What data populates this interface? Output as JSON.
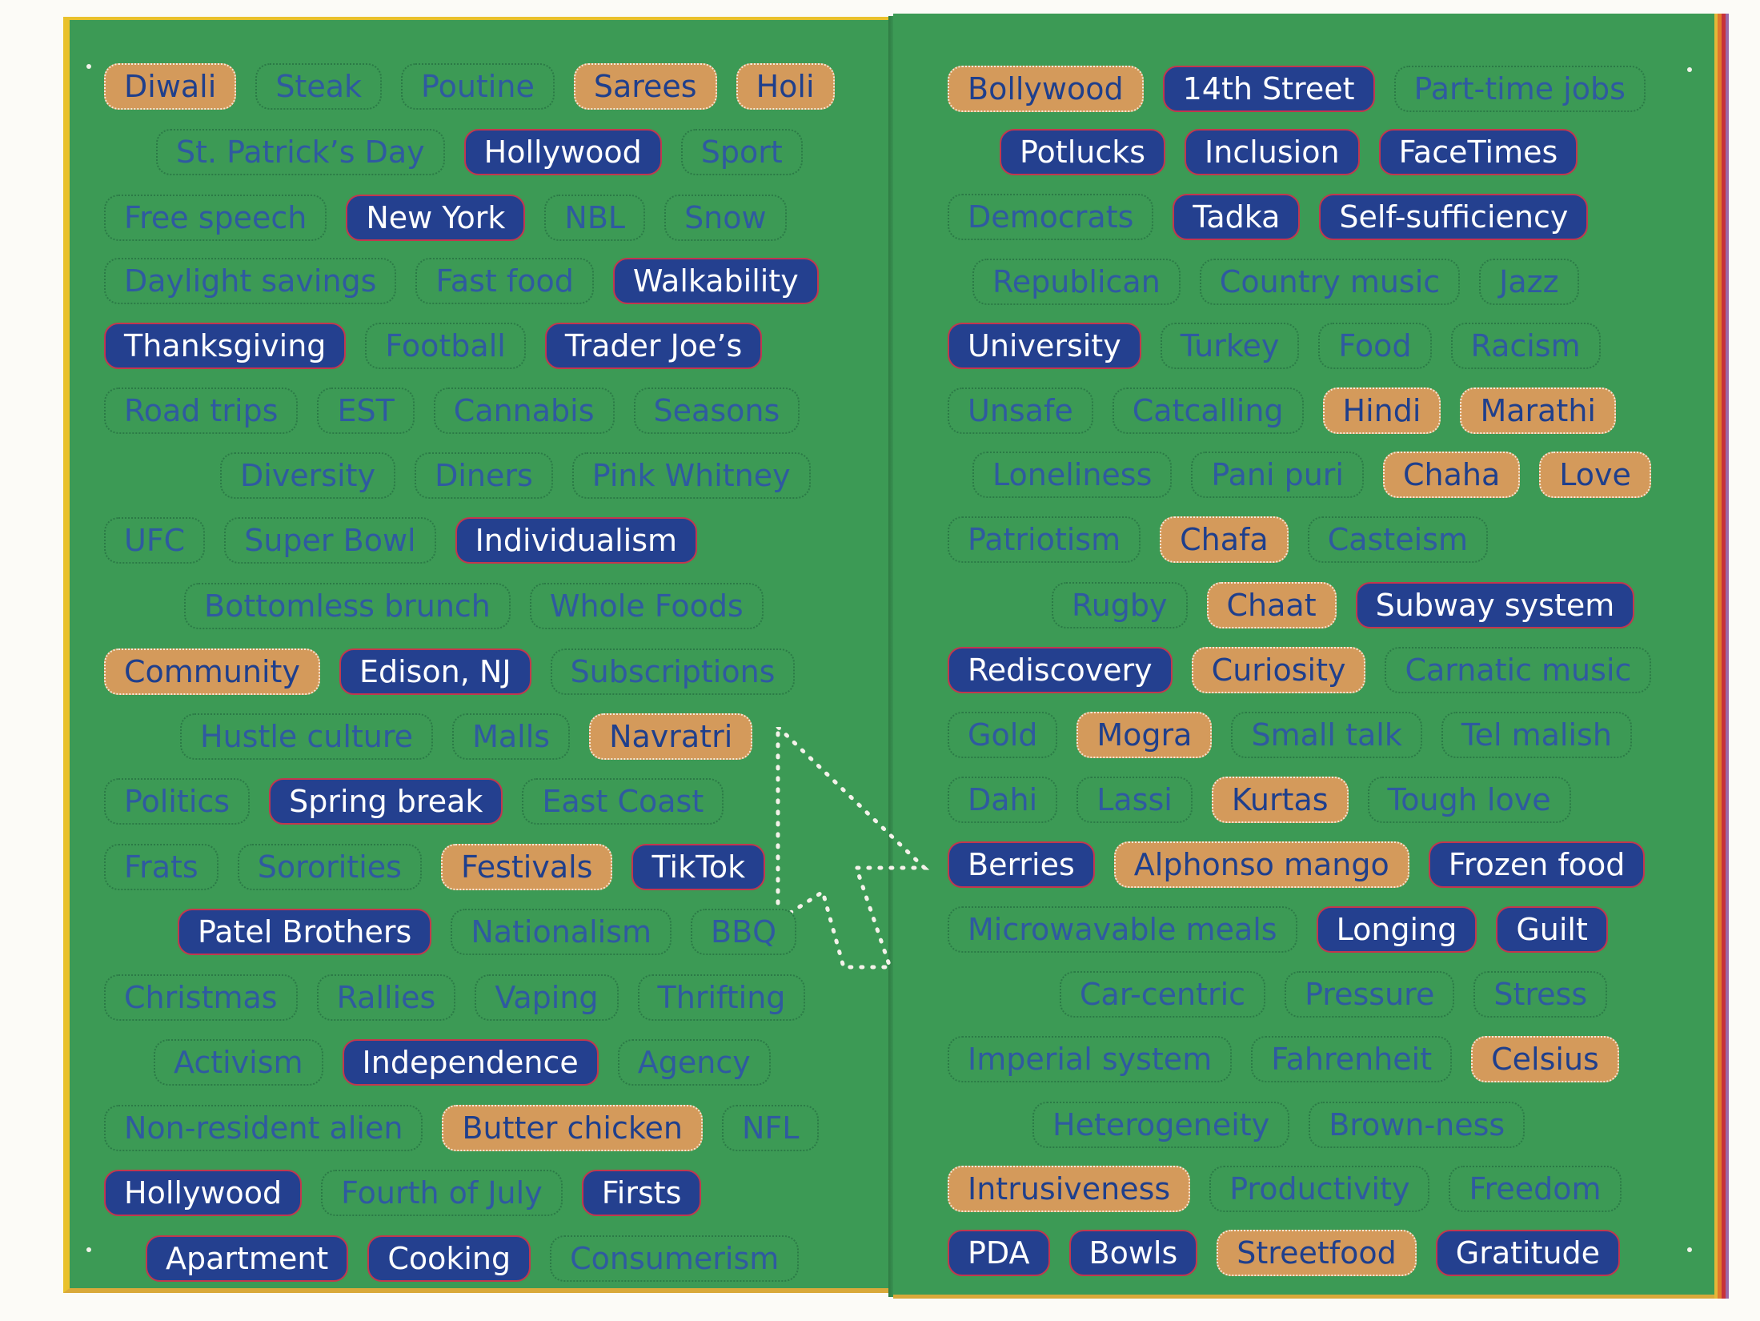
{
  "left_page": {
    "rows": [
      [
        {
          "t": "Diwali",
          "s": "orange"
        },
        {
          "t": "Steak",
          "s": "neutral"
        },
        {
          "t": "Poutine",
          "s": "neutral"
        },
        {
          "t": "Sarees",
          "s": "orange"
        },
        {
          "t": "Holi",
          "s": "orange"
        }
      ],
      [
        {
          "t": "St. Patrick’s Day",
          "s": "neutral"
        },
        {
          "t": "Hollywood",
          "s": "blue"
        },
        {
          "t": "Sport",
          "s": "neutral"
        }
      ],
      [
        {
          "t": "Free speech",
          "s": "neutral"
        },
        {
          "t": "New York",
          "s": "blue"
        },
        {
          "t": "NBL",
          "s": "neutral"
        },
        {
          "t": "Snow",
          "s": "neutral"
        }
      ],
      [
        {
          "t": "Daylight savings",
          "s": "neutral"
        },
        {
          "t": "Fast food",
          "s": "neutral"
        },
        {
          "t": "Walkability",
          "s": "blue"
        }
      ],
      [
        {
          "t": "Thanksgiving",
          "s": "blue"
        },
        {
          "t": "Football",
          "s": "neutral"
        },
        {
          "t": "Trader Joe’s",
          "s": "blue"
        }
      ],
      [
        {
          "t": "Road trips",
          "s": "neutral"
        },
        {
          "t": "EST",
          "s": "neutral"
        },
        {
          "t": "Cannabis",
          "s": "neutral"
        },
        {
          "t": "Seasons",
          "s": "neutral"
        }
      ],
      [
        {
          "t": "Diversity",
          "s": "neutral"
        },
        {
          "t": "Diners",
          "s": "neutral"
        },
        {
          "t": "Pink Whitney",
          "s": "neutral"
        }
      ],
      [
        {
          "t": "UFC",
          "s": "neutral"
        },
        {
          "t": "Super Bowl",
          "s": "neutral"
        },
        {
          "t": "Individualism",
          "s": "blue"
        }
      ],
      [
        {
          "t": "Bottomless brunch",
          "s": "neutral"
        },
        {
          "t": "Whole Foods",
          "s": "neutral"
        }
      ],
      [
        {
          "t": "Community",
          "s": "orange"
        },
        {
          "t": "Edison, NJ",
          "s": "blue"
        },
        {
          "t": "Subscriptions",
          "s": "neutral"
        }
      ],
      [
        {
          "t": "Hustle culture",
          "s": "neutral"
        },
        {
          "t": "Malls",
          "s": "neutral"
        },
        {
          "t": "Navratri",
          "s": "orange"
        }
      ],
      [
        {
          "t": "Politics",
          "s": "neutral"
        },
        {
          "t": "Spring break",
          "s": "blue"
        },
        {
          "t": "East Coast",
          "s": "neutral"
        }
      ],
      [
        {
          "t": "Frats",
          "s": "neutral"
        },
        {
          "t": "Sororities",
          "s": "neutral"
        },
        {
          "t": "Festivals",
          "s": "orange"
        },
        {
          "t": "TikTok",
          "s": "blue"
        }
      ],
      [
        {
          "t": "Patel Brothers",
          "s": "blue"
        },
        {
          "t": "Nationalism",
          "s": "neutral"
        },
        {
          "t": "BBQ",
          "s": "neutral"
        }
      ],
      [
        {
          "t": "Christmas",
          "s": "neutral"
        },
        {
          "t": "Rallies",
          "s": "neutral"
        },
        {
          "t": "Vaping",
          "s": "neutral"
        },
        {
          "t": "Thrifting",
          "s": "neutral"
        }
      ],
      [
        {
          "t": "Activism",
          "s": "neutral"
        },
        {
          "t": "Independence",
          "s": "blue"
        },
        {
          "t": "Agency",
          "s": "neutral"
        }
      ],
      [
        {
          "t": "Non-resident alien",
          "s": "neutral"
        },
        {
          "t": "Butter chicken",
          "s": "orange"
        },
        {
          "t": "NFL",
          "s": "neutral"
        }
      ],
      [
        {
          "t": "Hollywood",
          "s": "blue"
        },
        {
          "t": "Fourth of July",
          "s": "neutral"
        },
        {
          "t": "Firsts",
          "s": "blue"
        }
      ],
      [
        {
          "t": "Apartment",
          "s": "blue"
        },
        {
          "t": "Cooking",
          "s": "blue"
        },
        {
          "t": "Consumerism",
          "s": "neutral"
        }
      ]
    ]
  },
  "right_page": {
    "rows": [
      [
        {
          "t": "Bollywood",
          "s": "orange"
        },
        {
          "t": "14th Street",
          "s": "blue"
        },
        {
          "t": "Part-time jobs",
          "s": "neutral"
        }
      ],
      [
        {
          "t": "Potlucks",
          "s": "blue"
        },
        {
          "t": "Inclusion",
          "s": "blue"
        },
        {
          "t": "FaceTimes",
          "s": "blue"
        }
      ],
      [
        {
          "t": "Democrats",
          "s": "neutral"
        },
        {
          "t": "Tadka",
          "s": "blue"
        },
        {
          "t": "Self-sufficiency",
          "s": "blue"
        }
      ],
      [
        {
          "t": "Republican",
          "s": "neutral"
        },
        {
          "t": "Country music",
          "s": "neutral"
        },
        {
          "t": "Jazz",
          "s": "neutral"
        }
      ],
      [
        {
          "t": "University",
          "s": "blue"
        },
        {
          "t": "Turkey",
          "s": "neutral"
        },
        {
          "t": "Food",
          "s": "neutral"
        },
        {
          "t": "Racism",
          "s": "neutral"
        }
      ],
      [
        {
          "t": "Unsafe",
          "s": "neutral"
        },
        {
          "t": "Catcalling",
          "s": "neutral"
        },
        {
          "t": "Hindi",
          "s": "orange"
        },
        {
          "t": "Marathi",
          "s": "orange"
        }
      ],
      [
        {
          "t": "Loneliness",
          "s": "neutral"
        },
        {
          "t": "Pani puri",
          "s": "neutral"
        },
        {
          "t": "Chaha",
          "s": "orange"
        },
        {
          "t": "Love",
          "s": "orange"
        }
      ],
      [
        {
          "t": "Patriotism",
          "s": "neutral"
        },
        {
          "t": "Chafa",
          "s": "orange"
        },
        {
          "t": "Casteism",
          "s": "neutral"
        }
      ],
      [
        {
          "t": "Rugby",
          "s": "neutral"
        },
        {
          "t": "Chaat",
          "s": "orange"
        },
        {
          "t": "Subway system",
          "s": "blue"
        }
      ],
      [
        {
          "t": "Rediscovery",
          "s": "blue"
        },
        {
          "t": "Curiosity",
          "s": "orange"
        },
        {
          "t": "Carnatic music",
          "s": "neutral"
        }
      ],
      [
        {
          "t": "Gold",
          "s": "neutral"
        },
        {
          "t": "Mogra",
          "s": "orange"
        },
        {
          "t": "Small talk",
          "s": "neutral"
        },
        {
          "t": "Tel malish",
          "s": "neutral"
        }
      ],
      [
        {
          "t": "Dahi",
          "s": "neutral"
        },
        {
          "t": "Lassi",
          "s": "neutral"
        },
        {
          "t": "Kurtas",
          "s": "orange"
        },
        {
          "t": "Tough love",
          "s": "neutral"
        }
      ],
      [
        {
          "t": "Berries",
          "s": "blue"
        },
        {
          "t": "Alphonso mango",
          "s": "orange"
        },
        {
          "t": "Frozen food",
          "s": "blue"
        }
      ],
      [
        {
          "t": "Microwavable meals",
          "s": "neutral"
        },
        {
          "t": "Longing",
          "s": "blue"
        },
        {
          "t": "Guilt",
          "s": "blue"
        }
      ],
      [
        {
          "t": "Car-centric",
          "s": "neutral"
        },
        {
          "t": "Pressure",
          "s": "neutral"
        },
        {
          "t": "Stress",
          "s": "neutral"
        }
      ],
      [
        {
          "t": "Imperial system",
          "s": "neutral"
        },
        {
          "t": "Fahrenheit",
          "s": "neutral"
        },
        {
          "t": "Celsius",
          "s": "orange"
        }
      ],
      [
        {
          "t": "Heterogeneity",
          "s": "neutral"
        },
        {
          "t": "Brown-ness",
          "s": "neutral"
        }
      ],
      [
        {
          "t": "Intrusiveness",
          "s": "orange"
        },
        {
          "t": "Productivity",
          "s": "neutral"
        },
        {
          "t": "Freedom",
          "s": "neutral"
        }
      ],
      [
        {
          "t": "PDA",
          "s": "blue"
        },
        {
          "t": "Bowls",
          "s": "blue"
        },
        {
          "t": "Streetfood",
          "s": "orange"
        },
        {
          "t": "Gratitude",
          "s": "blue"
        }
      ]
    ]
  },
  "graphic": {
    "icon": "dotted-cursor-arrow-icon"
  },
  "colors": {
    "page_green": "#3c9a55",
    "tag_blue": "#24408f",
    "tag_orange": "#d49a5b",
    "text_blue": "#2f5aa0"
  }
}
